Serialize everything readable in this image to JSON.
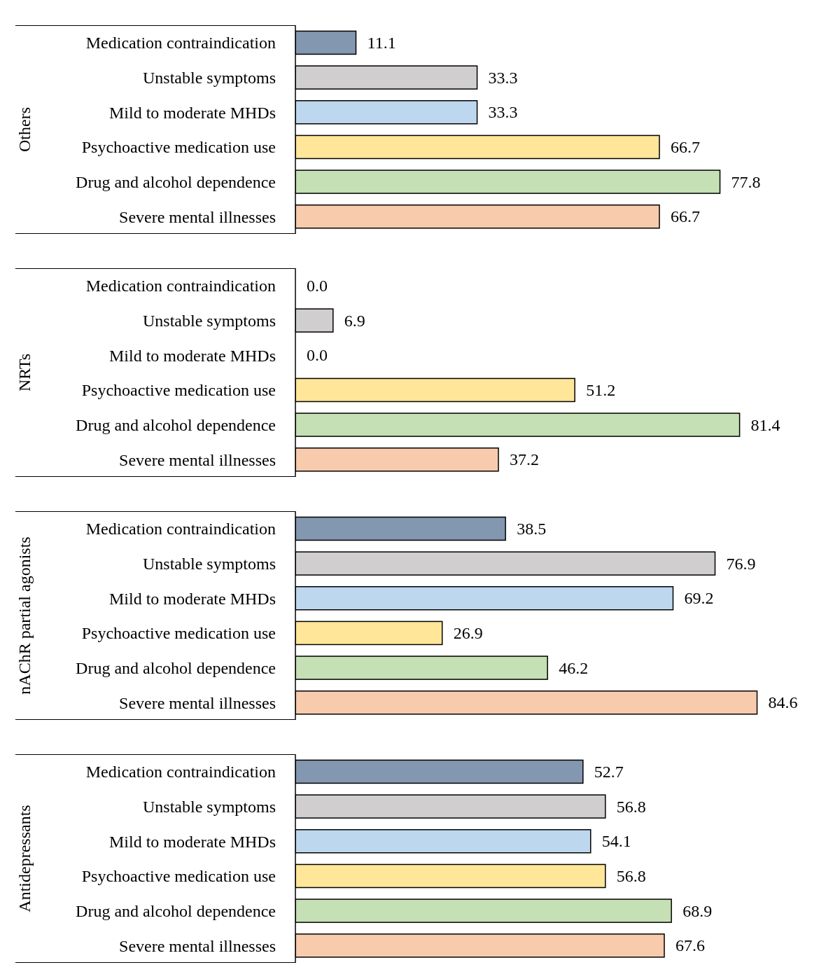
{
  "chart_data": [
    {
      "type": "bar",
      "orientation": "horizontal",
      "ylabel": "Others",
      "categories": [
        "Medication contraindication",
        "Unstable symptoms",
        "Mild to moderate MHDs",
        "Psychoactive medication use",
        "Drug and alcohol dependence",
        "Severe mental illnesses"
      ],
      "values": [
        11.1,
        33.3,
        33.3,
        66.7,
        77.8,
        66.7
      ],
      "value_labels": [
        "11.1",
        "33.3",
        "33.3",
        "66.7",
        "77.8",
        "66.7"
      ],
      "colors": [
        "#8497b0",
        "#d0cece",
        "#bdd7ee",
        "#ffe699",
        "#c5e0b4",
        "#f8cbad"
      ],
      "tick_labels": "y",
      "grid": false,
      "legend": false
    },
    {
      "type": "bar",
      "orientation": "horizontal",
      "ylabel": "NRTs",
      "categories": [
        "Medication contraindication",
        "Unstable symptoms",
        "Mild to moderate MHDs",
        "Psychoactive medication use",
        "Drug and alcohol dependence",
        "Severe mental illnesses"
      ],
      "values": [
        0.0,
        6.9,
        0.0,
        51.2,
        81.4,
        37.2
      ],
      "value_labels": [
        "0.0",
        "6.9",
        "0.0",
        "51.2",
        "81.4",
        "37.2"
      ],
      "colors": [
        "#8497b0",
        "#d0cece",
        "#bdd7ee",
        "#ffe699",
        "#c5e0b4",
        "#f8cbad"
      ],
      "tick_labels": "y",
      "grid": false,
      "legend": false
    },
    {
      "type": "bar",
      "orientation": "horizontal",
      "ylabel": "nAChR partial agonists",
      "categories": [
        "Medication contraindication",
        "Unstable symptoms",
        "Mild to moderate MHDs",
        "Psychoactive medication use",
        "Drug and alcohol dependence",
        "Severe mental illnesses"
      ],
      "values": [
        38.5,
        76.9,
        69.2,
        26.9,
        46.2,
        84.6
      ],
      "value_labels": [
        "38.5",
        "76.9",
        "69.2",
        "26.9",
        "46.2",
        "84.6"
      ],
      "colors": [
        "#8497b0",
        "#d0cece",
        "#bdd7ee",
        "#ffe699",
        "#c5e0b4",
        "#f8cbad"
      ],
      "tick_labels": "y",
      "grid": false,
      "legend": false
    },
    {
      "type": "bar",
      "orientation": "horizontal",
      "ylabel": "Antidepressants",
      "categories": [
        "Medication contraindication",
        "Unstable symptoms",
        "Mild to moderate MHDs",
        "Psychoactive medication use",
        "Drug and alcohol dependence",
        "Severe mental illnesses"
      ],
      "values": [
        52.7,
        56.8,
        54.1,
        56.8,
        68.9,
        67.6
      ],
      "value_labels": [
        "52.7",
        "56.8",
        "54.1",
        "56.8",
        "68.9",
        "67.6"
      ],
      "colors": [
        "#8497b0",
        "#d0cece",
        "#bdd7ee",
        "#ffe699",
        "#c5e0b4",
        "#f8cbad"
      ],
      "tick_labels": "y",
      "grid": false,
      "legend": false
    }
  ]
}
